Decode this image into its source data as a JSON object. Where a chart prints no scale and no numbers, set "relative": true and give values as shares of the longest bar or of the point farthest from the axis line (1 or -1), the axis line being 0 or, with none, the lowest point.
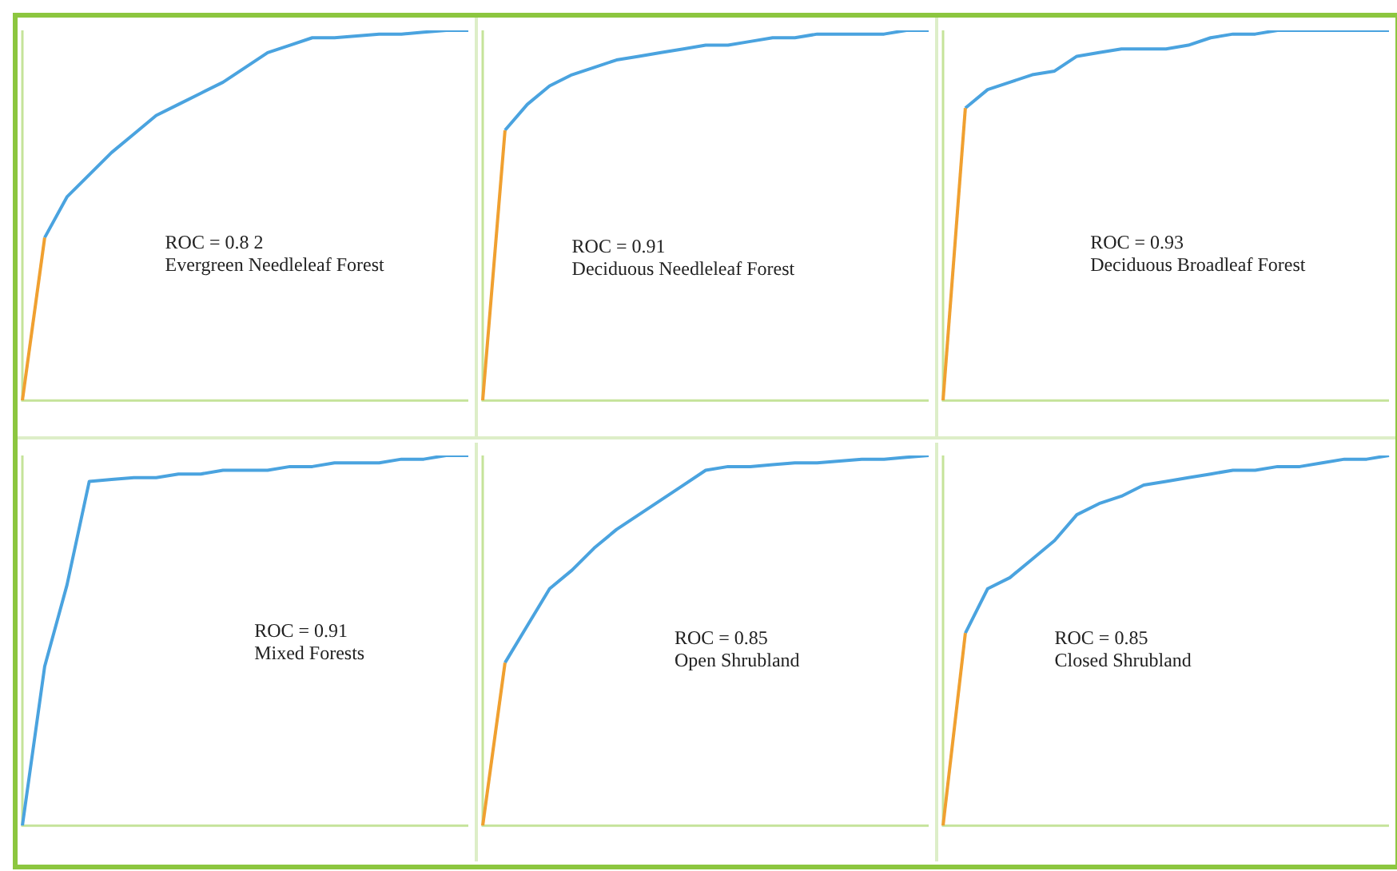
{
  "chart_data": [
    {
      "type": "line",
      "relative": true,
      "categories": [
        null,
        null,
        null,
        null,
        null,
        null,
        null,
        null,
        null,
        null,
        null,
        null,
        null,
        null,
        null,
        null,
        null,
        null,
        null,
        null,
        null
      ],
      "annotations": [
        "ROC = 0.8 2",
        "Evergreen Needleleaf Forest"
      ],
      "legend": false,
      "grid": false,
      "marker": "none",
      "series": [
        {
          "color": "#f0a030",
          "values": [
            0,
            0.44,
            null,
            null,
            null,
            null,
            null,
            null,
            null,
            null,
            null,
            null,
            null,
            null,
            null,
            null,
            null,
            null,
            null,
            null,
            null
          ]
        },
        {
          "color": "#4aa3df",
          "values": [
            null,
            0.44,
            0.55,
            0.61,
            0.67,
            0.72,
            0.77,
            0.8,
            0.83,
            0.86,
            0.9,
            0.94,
            0.96,
            0.98,
            0.98,
            0.985,
            0.99,
            0.99,
            0.995,
            1,
            1
          ]
        }
      ]
    },
    {
      "type": "line",
      "relative": true,
      "categories": [
        null,
        null,
        null,
        null,
        null,
        null,
        null,
        null,
        null,
        null,
        null,
        null,
        null,
        null,
        null,
        null,
        null,
        null,
        null,
        null,
        null
      ],
      "annotations": [
        "ROC = 0.91",
        "Deciduous Needleleaf Forest"
      ],
      "legend": false,
      "grid": false,
      "marker": "none",
      "series": [
        {
          "color": "#f0a030",
          "values": [
            0,
            0.73,
            null,
            null,
            null,
            null,
            null,
            null,
            null,
            null,
            null,
            null,
            null,
            null,
            null,
            null,
            null,
            null,
            null,
            null,
            null
          ]
        },
        {
          "color": "#4aa3df",
          "values": [
            null,
            0.73,
            0.8,
            0.85,
            0.88,
            0.9,
            0.92,
            0.93,
            0.94,
            0.95,
            0.96,
            0.96,
            0.97,
            0.98,
            0.98,
            0.99,
            0.99,
            0.99,
            0.99,
            1,
            1
          ]
        }
      ]
    },
    {
      "type": "line",
      "relative": true,
      "categories": [
        null,
        null,
        null,
        null,
        null,
        null,
        null,
        null,
        null,
        null,
        null,
        null,
        null,
        null,
        null,
        null,
        null,
        null,
        null,
        null,
        null
      ],
      "annotations": [
        "ROC = 0.93",
        "Deciduous Broadleaf Forest"
      ],
      "legend": false,
      "grid": false,
      "marker": "none",
      "series": [
        {
          "color": "#f0a030",
          "values": [
            0,
            0.79,
            null,
            null,
            null,
            null,
            null,
            null,
            null,
            null,
            null,
            null,
            null,
            null,
            null,
            null,
            null,
            null,
            null,
            null,
            null
          ]
        },
        {
          "color": "#4aa3df",
          "values": [
            null,
            0.79,
            0.84,
            0.86,
            0.88,
            0.89,
            0.93,
            0.94,
            0.95,
            0.95,
            0.95,
            0.96,
            0.98,
            0.99,
            0.99,
            1,
            1,
            1,
            1,
            1,
            1
          ]
        }
      ]
    },
    {
      "type": "line",
      "relative": true,
      "categories": [
        null,
        null,
        null,
        null,
        null,
        null,
        null,
        null,
        null,
        null,
        null,
        null,
        null,
        null,
        null,
        null,
        null,
        null,
        null,
        null,
        null
      ],
      "annotations": [
        "ROC = 0.91",
        "Mixed Forests"
      ],
      "legend": false,
      "grid": false,
      "marker": "none",
      "series": [
        {
          "color": "#4aa3df",
          "values": [
            0,
            0.43,
            0.65,
            0.93,
            0.935,
            0.94,
            0.94,
            0.95,
            0.95,
            0.96,
            0.96,
            0.96,
            0.97,
            0.97,
            0.98,
            0.98,
            0.98,
            0.99,
            0.99,
            1,
            1
          ]
        }
      ]
    },
    {
      "type": "line",
      "relative": true,
      "categories": [
        null,
        null,
        null,
        null,
        null,
        null,
        null,
        null,
        null,
        null,
        null,
        null,
        null,
        null,
        null,
        null,
        null,
        null,
        null,
        null,
        null
      ],
      "annotations": [
        "ROC = 0.85",
        "Open Shrubland"
      ],
      "legend": false,
      "grid": false,
      "marker": "none",
      "series": [
        {
          "color": "#f0a030",
          "values": [
            0,
            0.44,
            null,
            null,
            null,
            null,
            null,
            null,
            null,
            null,
            null,
            null,
            null,
            null,
            null,
            null,
            null,
            null,
            null,
            null,
            null
          ]
        },
        {
          "color": "#4aa3df",
          "values": [
            null,
            0.44,
            0.54,
            0.64,
            0.69,
            0.75,
            0.8,
            0.84,
            0.88,
            0.92,
            0.96,
            0.97,
            0.97,
            0.975,
            0.98,
            0.98,
            0.985,
            0.99,
            0.99,
            0.995,
            1
          ]
        }
      ]
    },
    {
      "type": "line",
      "relative": true,
      "categories": [
        null,
        null,
        null,
        null,
        null,
        null,
        null,
        null,
        null,
        null,
        null,
        null,
        null,
        null,
        null,
        null,
        null,
        null,
        null,
        null,
        null
      ],
      "annotations": [
        "ROC = 0.85",
        "Closed Shrubland"
      ],
      "legend": false,
      "grid": false,
      "marker": "none",
      "series": [
        {
          "color": "#f0a030",
          "values": [
            0,
            0.52,
            null,
            null,
            null,
            null,
            null,
            null,
            null,
            null,
            null,
            null,
            null,
            null,
            null,
            null,
            null,
            null,
            null,
            null,
            null
          ]
        },
        {
          "color": "#4aa3df",
          "values": [
            null,
            0.52,
            0.64,
            0.67,
            0.72,
            0.77,
            0.84,
            0.87,
            0.89,
            0.92,
            0.93,
            0.94,
            0.95,
            0.96,
            0.96,
            0.97,
            0.97,
            0.98,
            0.99,
            0.99,
            1
          ]
        }
      ]
    }
  ]
}
